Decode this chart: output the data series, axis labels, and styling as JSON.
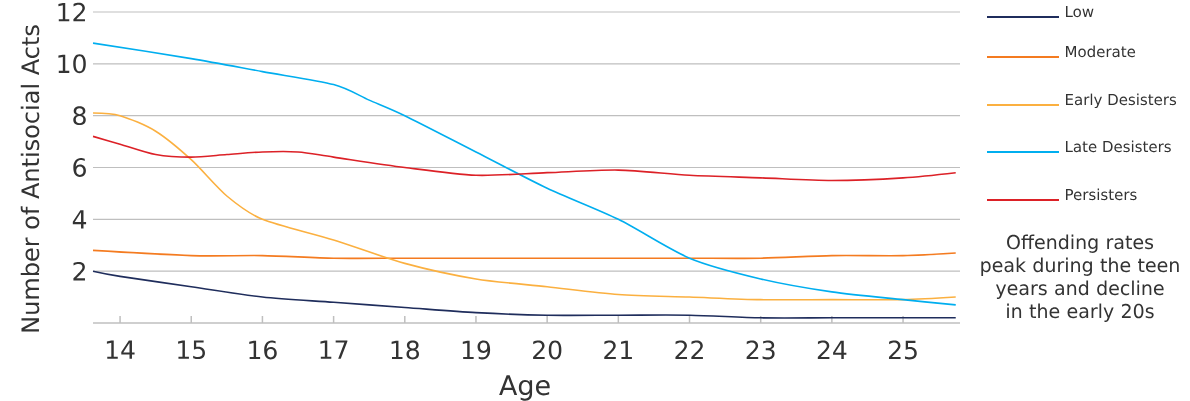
{
  "chart_data": {
    "type": "line",
    "xlabel": "Age",
    "ylabel": "Number of Antisocial Acts",
    "xlim": [
      13.62,
      25.8
    ],
    "ylim": [
      0,
      12
    ],
    "xticks": [
      14,
      15,
      16,
      17,
      18,
      19,
      20,
      21,
      22,
      23,
      24,
      25
    ],
    "yticks": [
      2,
      4,
      6,
      8,
      10,
      12
    ],
    "grid": "y",
    "legend": "right",
    "marker": "none",
    "line_style": "solid",
    "annotations": [
      "Offending rates peak during the teen years and decline in the early 20s"
    ],
    "series": [
      {
        "name": "Low",
        "color": "#1f2d5c",
        "x": [
          13.62,
          14,
          15,
          16,
          17,
          18,
          19,
          20,
          21,
          22,
          23,
          24,
          25,
          25.74
        ],
        "values": [
          2.0,
          1.8,
          1.4,
          1.0,
          0.8,
          0.6,
          0.4,
          0.3,
          0.3,
          0.3,
          0.2,
          0.2,
          0.2,
          0.2
        ]
      },
      {
        "name": "Moderate",
        "color": "#f47b20",
        "x": [
          13.62,
          15,
          16,
          17,
          18,
          19,
          20,
          21,
          22,
          23,
          24,
          25,
          25.74
        ],
        "values": [
          2.8,
          2.6,
          2.6,
          2.5,
          2.5,
          2.5,
          2.5,
          2.5,
          2.5,
          2.5,
          2.6,
          2.6,
          2.7
        ]
      },
      {
        "name": "Early Desisters",
        "color": "#fbb040",
        "x": [
          13.62,
          14,
          14.5,
          15,
          15.5,
          16,
          17,
          18,
          19,
          20,
          21,
          22,
          23,
          24,
          25,
          25.74
        ],
        "values": [
          8.1,
          8.0,
          7.4,
          6.3,
          4.9,
          4.0,
          3.2,
          2.3,
          1.7,
          1.4,
          1.1,
          1.0,
          0.9,
          0.9,
          0.9,
          1.0
        ]
      },
      {
        "name": "Late Desisters",
        "color": "#00aeef",
        "x": [
          13.62,
          15,
          16,
          17,
          17.5,
          18,
          19,
          20,
          21,
          22,
          23,
          24,
          25,
          25.74
        ],
        "values": [
          10.8,
          10.2,
          9.7,
          9.2,
          8.6,
          8.0,
          6.6,
          5.2,
          4.0,
          2.5,
          1.7,
          1.2,
          0.9,
          0.7
        ]
      },
      {
        "name": "Persisters",
        "color": "#dc2127",
        "x": [
          13.62,
          14,
          14.5,
          15,
          15.5,
          16,
          16.5,
          17,
          18,
          19,
          20,
          21,
          22,
          23,
          24,
          25,
          25.74
        ],
        "values": [
          7.2,
          6.9,
          6.5,
          6.4,
          6.5,
          6.6,
          6.6,
          6.4,
          6.0,
          5.7,
          5.8,
          5.9,
          5.7,
          5.6,
          5.5,
          5.6,
          5.8
        ]
      }
    ]
  }
}
